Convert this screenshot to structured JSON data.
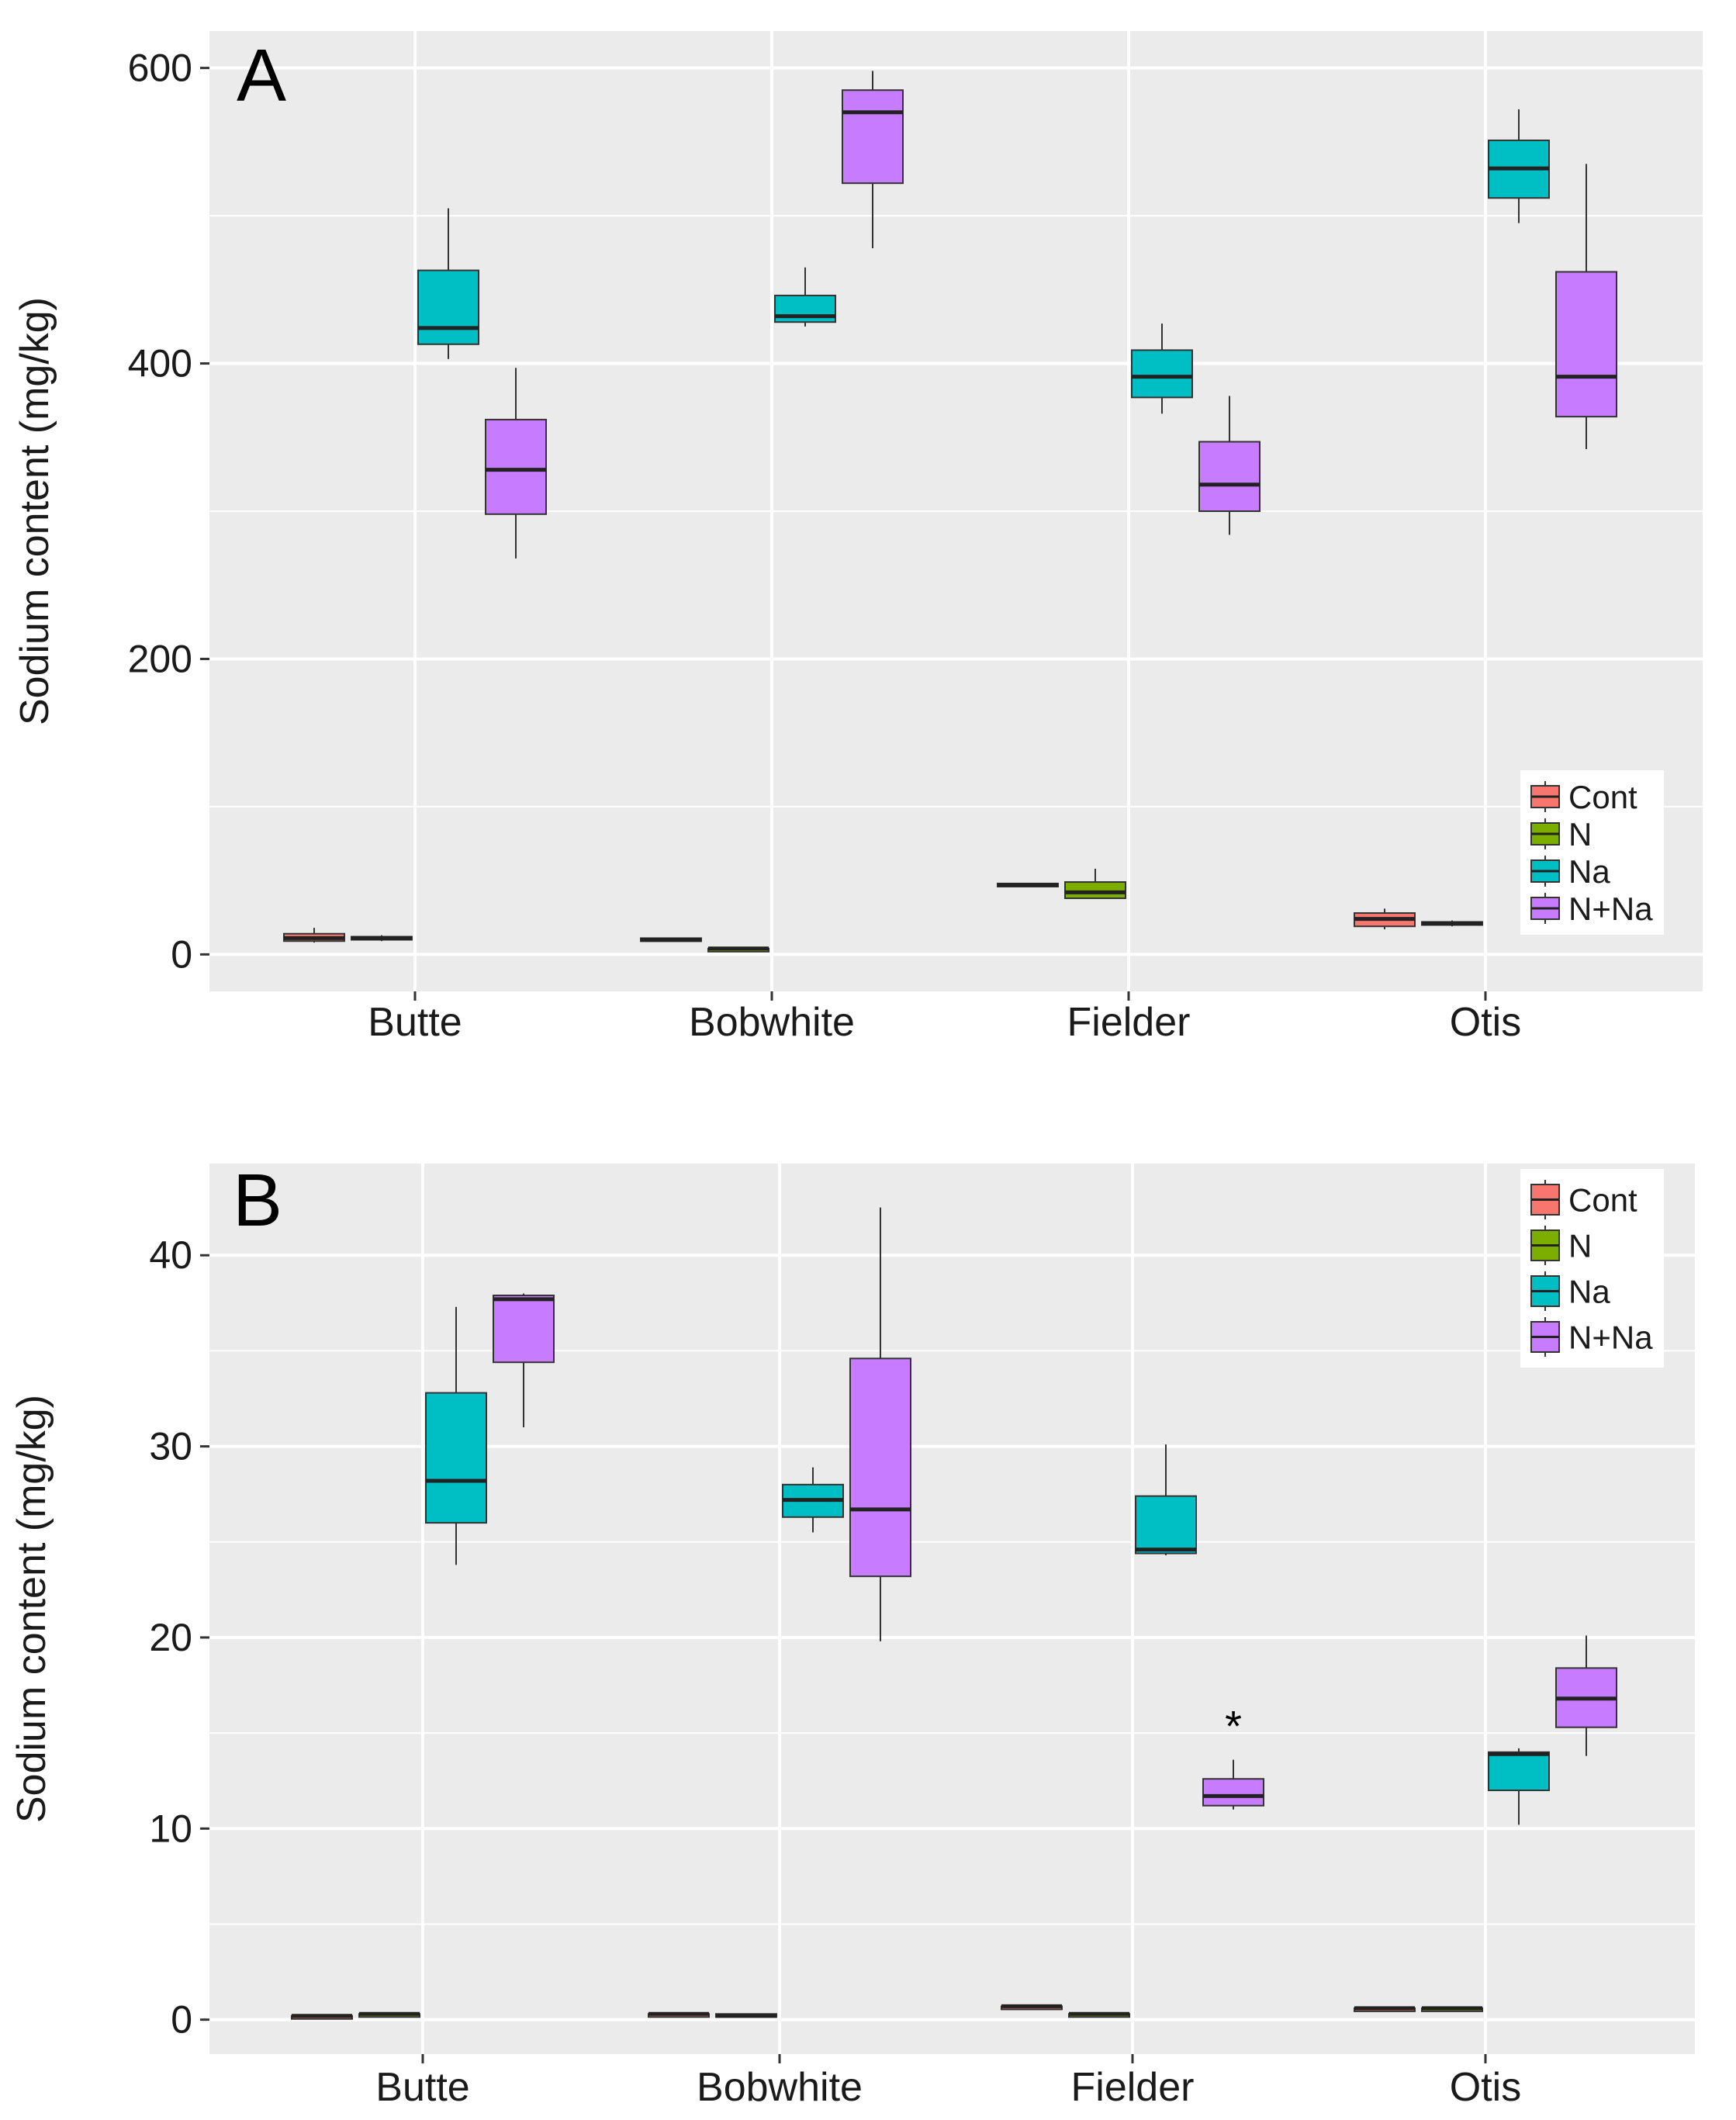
{
  "colors": {
    "panel_bg": "#EBEBEB",
    "grid": "#FFFFFF",
    "Cont": "#F8766D",
    "N": "#7CAE00",
    "Na": "#00BFC4",
    "N+Na": "#C77CFF"
  },
  "chart_data": [
    {
      "type": "box",
      "panel_label": "A",
      "title": "",
      "xlabel": "",
      "ylabel": "Sodium content (mg/kg)",
      "ylim": [
        -25,
        625
      ],
      "yticks": [
        0,
        200,
        400,
        600
      ],
      "ytick_labels": [
        "0",
        "200",
        "400",
        "600"
      ],
      "categories": [
        "Butte",
        "Bobwhite",
        "Fielder",
        "Otis"
      ],
      "legend": {
        "position": "bottom-right",
        "entries": [
          "Cont",
          "N",
          "Na",
          "N+Na"
        ]
      },
      "groups": [
        {
          "category": "Butte",
          "boxes": [
            {
              "series": "Cont",
              "min": 8,
              "q1": 9,
              "median": 11,
              "q3": 14,
              "max": 18
            },
            {
              "series": "N",
              "min": 9,
              "q1": 10,
              "median": 11,
              "q3": 12,
              "max": 13
            },
            {
              "series": "Na",
              "min": 403,
              "q1": 413,
              "median": 424,
              "q3": 463,
              "max": 505
            },
            {
              "series": "N+Na",
              "min": 268,
              "q1": 298,
              "median": 328,
              "q3": 362,
              "max": 397
            }
          ]
        },
        {
          "category": "Bobwhite",
          "boxes": [
            {
              "series": "Cont",
              "min": 9,
              "q1": 9,
              "median": 10,
              "q3": 11,
              "max": 11
            },
            {
              "series": "N",
              "min": 3,
              "q1": 3,
              "median": 4,
              "q3": 4,
              "max": 5
            },
            {
              "series": "Na",
              "min": 425,
              "q1": 428,
              "median": 432,
              "q3": 446,
              "max": 465
            },
            {
              "series": "N+Na",
              "min": 478,
              "q1": 522,
              "median": 570,
              "q3": 585,
              "max": 598
            }
          ]
        },
        {
          "category": "Fielder",
          "boxes": [
            {
              "series": "Cont",
              "min": 47,
              "q1": 47,
              "median": 47,
              "q3": 48,
              "max": 48
            },
            {
              "series": "N",
              "min": 38,
              "q1": 38,
              "median": 42,
              "q3": 49,
              "max": 58
            },
            {
              "series": "Na",
              "min": 366,
              "q1": 377,
              "median": 391,
              "q3": 409,
              "max": 427
            },
            {
              "series": "N+Na",
              "min": 284,
              "q1": 300,
              "median": 318,
              "q3": 347,
              "max": 378
            }
          ]
        },
        {
          "category": "Otis",
          "boxes": [
            {
              "series": "Cont",
              "min": 17,
              "q1": 19,
              "median": 24,
              "q3": 28,
              "max": 31
            },
            {
              "series": "N",
              "min": 19,
              "q1": 20,
              "median": 21,
              "q3": 22,
              "max": 23
            },
            {
              "series": "Na",
              "min": 495,
              "q1": 512,
              "median": 532,
              "q3": 551,
              "max": 572
            },
            {
              "series": "N+Na",
              "min": 342,
              "q1": 364,
              "median": 391,
              "q3": 462,
              "max": 535
            }
          ]
        }
      ]
    },
    {
      "type": "box",
      "panel_label": "B",
      "title": "",
      "xlabel": "",
      "ylabel": "Sodium content (mg/kg)",
      "ylim": [
        -1.8,
        44.8
      ],
      "yticks": [
        0,
        10,
        20,
        30,
        40
      ],
      "ytick_labels": [
        "0",
        "10",
        "20",
        "30",
        "40"
      ],
      "categories": [
        "Butte",
        "Bobwhite",
        "Fielder",
        "Otis"
      ],
      "legend": {
        "position": "top-right",
        "entries": [
          "Cont",
          "N",
          "Na",
          "N+Na"
        ]
      },
      "annotations": [
        {
          "text": "*",
          "category": "Fielder",
          "series": "N+Na",
          "y": 15.8
        }
      ],
      "groups": [
        {
          "category": "Butte",
          "boxes": [
            {
              "series": "Cont",
              "min": 0.2,
              "q1": 0.2,
              "median": 0.2,
              "q3": 0.2,
              "max": 0.2
            },
            {
              "series": "N",
              "min": 0.3,
              "q1": 0.3,
              "median": 0.3,
              "q3": 0.3,
              "max": 0.3
            },
            {
              "series": "Na",
              "min": 23.8,
              "q1": 26.0,
              "median": 28.2,
              "q3": 32.8,
              "max": 37.3
            },
            {
              "series": "N+Na",
              "min": 31.0,
              "q1": 34.4,
              "median": 37.7,
              "q3": 37.9,
              "max": 38.0
            }
          ]
        },
        {
          "category": "Bobwhite",
          "boxes": [
            {
              "series": "Cont",
              "min": 0.3,
              "q1": 0.3,
              "median": 0.3,
              "q3": 0.3,
              "max": 0.3
            },
            {
              "series": "N",
              "min": 0.2,
              "q1": 0.2,
              "median": 0.2,
              "q3": 0.3,
              "max": 0.3
            },
            {
              "series": "Na",
              "min": 25.5,
              "q1": 26.3,
              "median": 27.2,
              "q3": 28.0,
              "max": 28.9
            },
            {
              "series": "N+Na",
              "min": 19.8,
              "q1": 23.2,
              "median": 26.7,
              "q3": 34.6,
              "max": 42.5
            }
          ]
        },
        {
          "category": "Fielder",
          "boxes": [
            {
              "series": "Cont",
              "min": 0.6,
              "q1": 0.6,
              "median": 0.7,
              "q3": 0.7,
              "max": 0.7
            },
            {
              "series": "N",
              "min": 0.3,
              "q1": 0.3,
              "median": 0.3,
              "q3": 0.3,
              "max": 0.3
            },
            {
              "series": "Na",
              "min": 24.3,
              "q1": 24.4,
              "median": 24.6,
              "q3": 27.4,
              "max": 30.1
            },
            {
              "series": "N+Na",
              "min": 11.0,
              "q1": 11.2,
              "median": 11.7,
              "q3": 12.6,
              "max": 13.6
            }
          ]
        },
        {
          "category": "Otis",
          "boxes": [
            {
              "series": "Cont",
              "min": 0.6,
              "q1": 0.6,
              "median": 0.6,
              "q3": 0.6,
              "max": 0.6
            },
            {
              "series": "N",
              "min": 0.6,
              "q1": 0.6,
              "median": 0.6,
              "q3": 0.6,
              "max": 0.6
            },
            {
              "series": "Na",
              "min": 10.2,
              "q1": 12.0,
              "median": 13.9,
              "q3": 14.0,
              "max": 14.2
            },
            {
              "series": "N+Na",
              "min": 13.8,
              "q1": 15.3,
              "median": 16.8,
              "q3": 18.4,
              "max": 20.1
            }
          ]
        }
      ]
    }
  ]
}
